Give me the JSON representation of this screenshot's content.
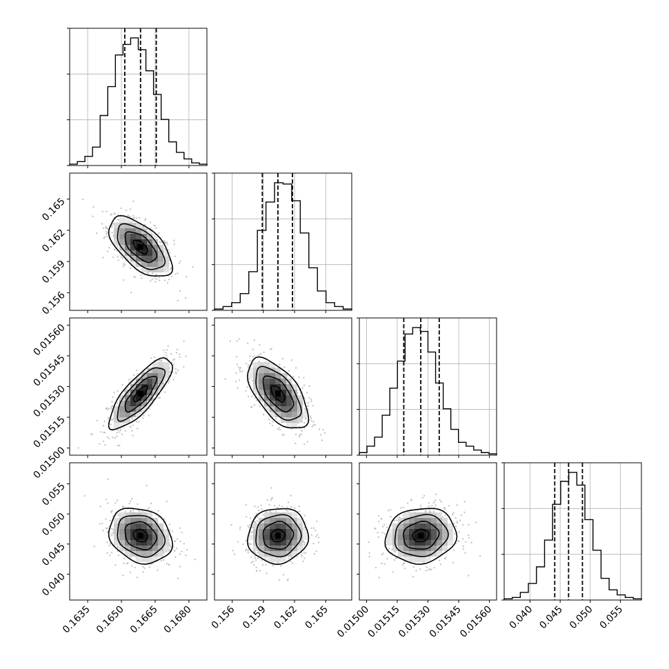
{
  "chart_data": {
    "type": "corner",
    "grid": true,
    "parameters": [
      {
        "index": 0,
        "range": [
          0.1627,
          0.1688
        ],
        "ticks": [
          "0.1635",
          "0.1650",
          "0.1665",
          "0.1680"
        ],
        "tick_values": [
          0.1635,
          0.165,
          0.1665,
          0.168
        ],
        "quantiles": [
          0.16515,
          0.16585,
          0.16655
        ],
        "hist_counts": [
          1,
          3,
          7,
          14,
          38,
          60,
          84,
          92,
          97,
          88,
          72,
          54,
          35,
          18,
          10,
          5,
          2,
          1
        ]
      },
      {
        "index": 1,
        "range": [
          0.1543,
          0.1675
        ],
        "ticks": [
          "0.156",
          "0.159",
          "0.162",
          "0.165"
        ],
        "tick_values": [
          0.156,
          0.159,
          0.162,
          0.165
        ],
        "quantiles": [
          0.1589,
          0.1604,
          0.1618
        ],
        "hist_counts": [
          1,
          3,
          6,
          13,
          30,
          62,
          84,
          99,
          98,
          85,
          60,
          33,
          15,
          6,
          3,
          1
        ]
      },
      {
        "index": 2,
        "range": [
          0.014965,
          0.015635
        ],
        "ticks": [
          "0.01500",
          "0.01515",
          "0.01530",
          "0.01545",
          "0.01560"
        ],
        "tick_values": [
          0.015,
          0.01515,
          0.0153,
          0.01545,
          0.0156
        ],
        "quantiles": [
          0.015182,
          0.015265,
          0.015355
        ],
        "hist_counts": [
          2,
          7,
          14,
          31,
          52,
          73,
          94,
          99,
          96,
          80,
          56,
          36,
          20,
          10,
          7,
          4,
          2,
          1
        ]
      },
      {
        "index": 3,
        "range": [
          0.0357,
          0.0585
        ],
        "ticks": [
          "0.040",
          "0.045",
          "0.050",
          "0.055"
        ],
        "tick_values": [
          0.04,
          0.045,
          0.05,
          0.055
        ],
        "quantiles": [
          0.0441,
          0.0464,
          0.0487
        ],
        "hist_counts": [
          1,
          2,
          6,
          13,
          26,
          47,
          75,
          93,
          100,
          90,
          63,
          39,
          17,
          8,
          4,
          2,
          1
        ]
      }
    ],
    "correlations": {
      "1,0": -0.6,
      "2,0": 0.8,
      "2,1": -0.6,
      "3,0": -0.2,
      "3,1": 0.05,
      "3,2": 0.1
    }
  }
}
